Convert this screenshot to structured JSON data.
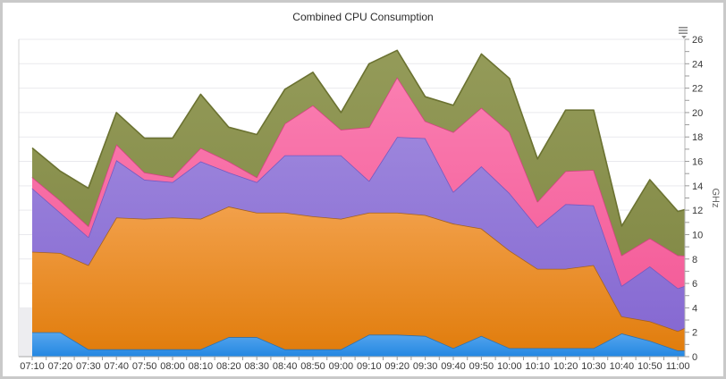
{
  "title": "Combined CPU Consumption",
  "export_menu": {
    "icon": "hamburger-caret-icon",
    "color": "#8c8c8c"
  },
  "chart_data": {
    "type": "area",
    "stacked": true,
    "title": "Combined CPU Consumption",
    "legend": "none",
    "grid": {
      "horizontal": true,
      "vertical": false,
      "color": "#e9e9ed"
    },
    "x_axis": {
      "labels": [
        "07:10",
        "07:20",
        "07:30",
        "07:40",
        "07:50",
        "08:00",
        "08:10",
        "08:20",
        "08:30",
        "08:40",
        "08:50",
        "09:00",
        "09:10",
        "09:20",
        "09:30",
        "09:40",
        "09:50",
        "10:00",
        "10:10",
        "10:20",
        "10:30",
        "10:40",
        "10:50",
        "11:00"
      ],
      "minor_ticks_per_interval": 2
    },
    "y_axis": {
      "title": "GHz",
      "side": "right",
      "min": 0,
      "max": 26,
      "label_step": 2,
      "minor_tick_step": 1
    },
    "series": [
      {
        "id": "blue",
        "color_top": "#58a7ee",
        "color_bottom": "#2387e2",
        "stroke": "#2e71ad",
        "values": [
          2.0,
          2.0,
          0.6,
          0.6,
          0.6,
          0.6,
          0.6,
          1.6,
          1.6,
          0.6,
          0.6,
          0.6,
          1.8,
          1.8,
          1.7,
          0.7,
          1.7,
          0.7,
          0.7,
          0.7,
          0.7,
          1.9,
          1.3,
          0.5,
          0.5
        ]
      },
      {
        "id": "orange",
        "color_top": "#f2a04a",
        "color_bottom": "#e17d0d",
        "stroke": "#a3601f",
        "values": [
          6.6,
          6.5,
          6.9,
          10.8,
          10.7,
          10.8,
          10.7,
          10.7,
          10.2,
          11.2,
          10.9,
          10.7,
          10.0,
          10.0,
          9.9,
          10.2,
          8.8,
          8.0,
          6.5,
          6.5,
          6.8,
          1.4,
          1.6,
          1.6,
          2.6
        ]
      },
      {
        "id": "purple",
        "color_top": "#9c85dc",
        "color_bottom": "#8669d2",
        "stroke": "#7558c0",
        "values": [
          5.2,
          3.3,
          2.3,
          4.7,
          3.2,
          2.9,
          4.7,
          2.8,
          2.5,
          4.7,
          5.0,
          5.2,
          2.6,
          6.2,
          6.3,
          2.6,
          5.1,
          4.7,
          3.4,
          5.3,
          4.9,
          2.5,
          4.5,
          3.5,
          3.3
        ]
      },
      {
        "id": "pink",
        "color_top": "#fa7eb1",
        "color_bottom": "#f45e9a",
        "stroke": "#d2437f",
        "values": [
          0.9,
          1.0,
          0.9,
          1.3,
          0.6,
          0.4,
          1.1,
          0.9,
          0.4,
          2.6,
          4.1,
          2.1,
          4.4,
          4.9,
          1.4,
          4.9,
          4.8,
          5.0,
          2.1,
          2.7,
          2.9,
          2.5,
          2.3,
          2.7,
          1.8
        ]
      },
      {
        "id": "olive",
        "color_top": "#949b59",
        "color_bottom": "#848b48",
        "stroke": "#6b7231",
        "values": [
          2.4,
          2.4,
          3.1,
          2.6,
          2.8,
          3.2,
          4.4,
          2.8,
          3.5,
          2.8,
          2.7,
          1.4,
          5.2,
          2.2,
          2.0,
          2.2,
          4.4,
          4.4,
          3.5,
          5.0,
          4.9,
          2.4,
          4.8,
          3.6,
          4.3
        ]
      }
    ],
    "note_last_point_clipped": true,
    "empty_strip": {
      "below_value": 4,
      "color": "#ededf0"
    }
  }
}
